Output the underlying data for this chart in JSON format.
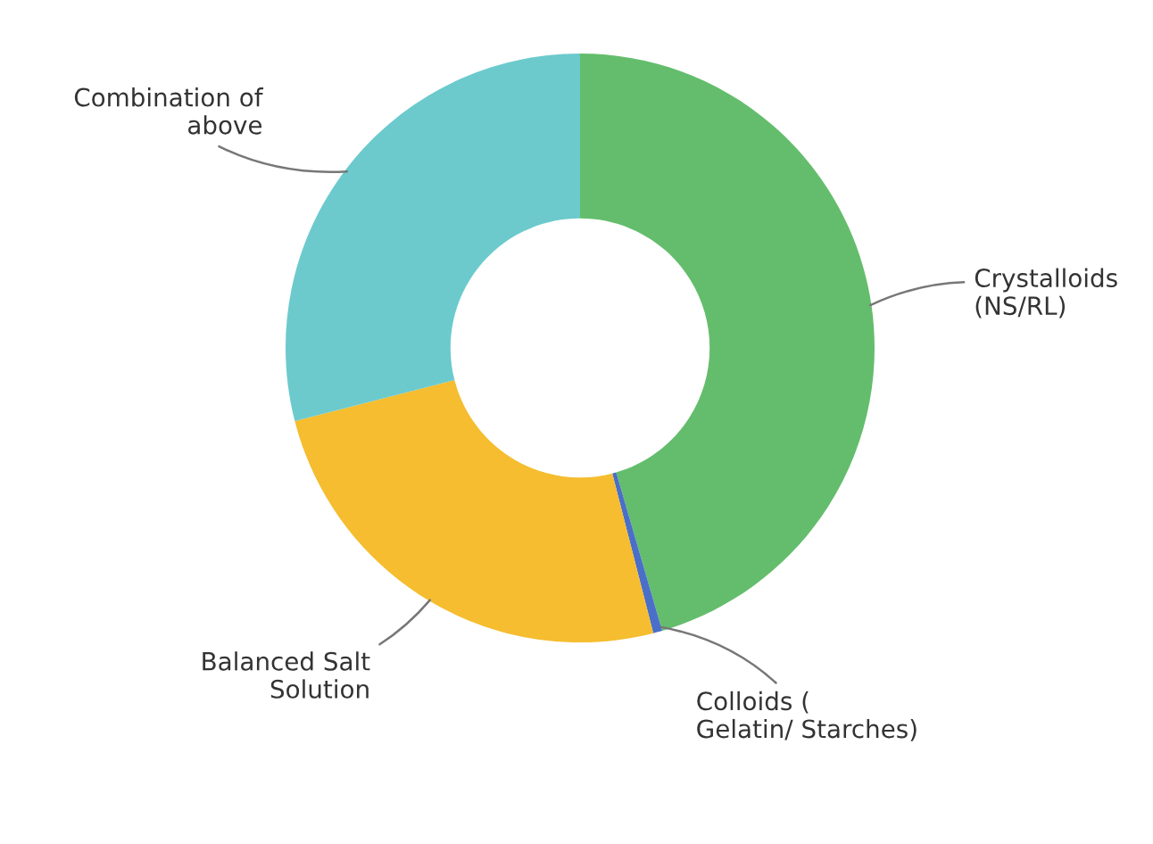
{
  "chart_data": {
    "type": "donut",
    "categories": [
      "Crystalloids\n(NS/RL)",
      "Colloids (\nGelatin/ Starches)",
      "Balanced Salt\nSolution",
      "Combination of\nabove"
    ],
    "values": [
      45.5,
      0.5,
      25,
      29
    ],
    "colors": [
      "#64bd6c",
      "#4a6fc8",
      "#f5bd2f",
      "#6ccacd"
    ]
  }
}
